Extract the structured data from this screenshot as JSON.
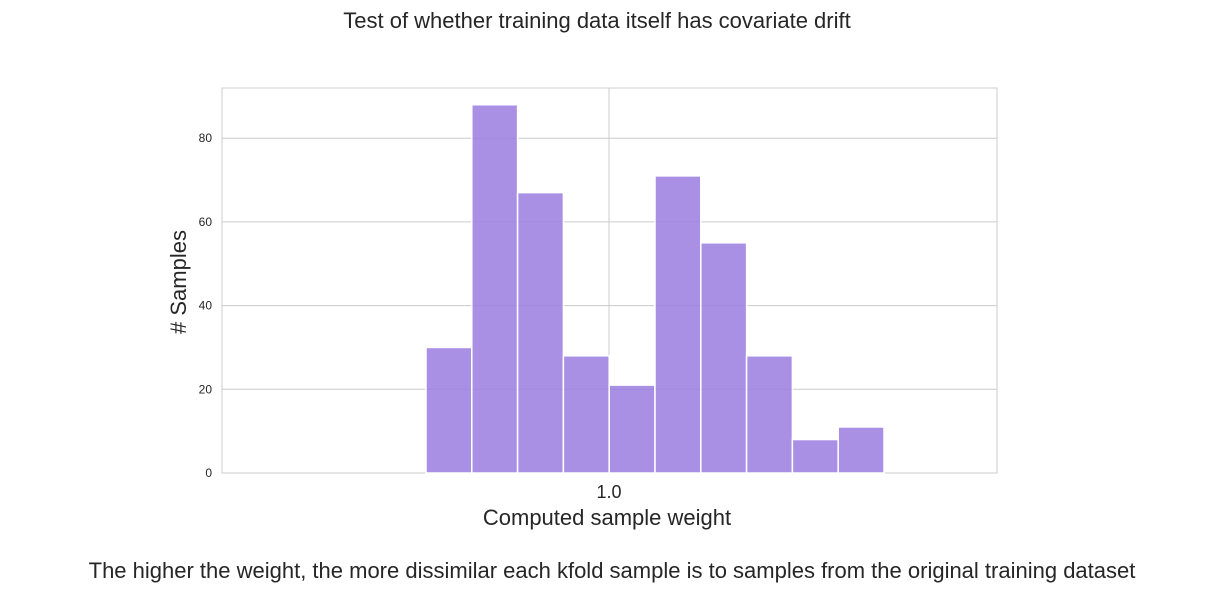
{
  "chart_data": {
    "type": "bar",
    "title": "Test of whether training data itself has covariate drift",
    "xlabel": "Computed sample weight",
    "ylabel": "# Samples",
    "caption": "The higher the weight, the more dissimilar each kfold sample is to samples from the original training dataset",
    "x_tick_labels": [
      "1.0"
    ],
    "y_ticks": [
      0,
      20,
      40,
      60,
      80
    ],
    "ylim": [
      0,
      92
    ],
    "grid": true,
    "bar_color": "#9b7ddf",
    "bins": [
      {
        "bin": 1,
        "count": 30
      },
      {
        "bin": 2,
        "count": 88
      },
      {
        "bin": 3,
        "count": 67
      },
      {
        "bin": 4,
        "count": 28
      },
      {
        "bin": 5,
        "count": 21
      },
      {
        "bin": 6,
        "count": 71
      },
      {
        "bin": 7,
        "count": 55
      },
      {
        "bin": 8,
        "count": 28
      },
      {
        "bin": 9,
        "count": 8
      },
      {
        "bin": 10,
        "count": 11
      }
    ]
  }
}
